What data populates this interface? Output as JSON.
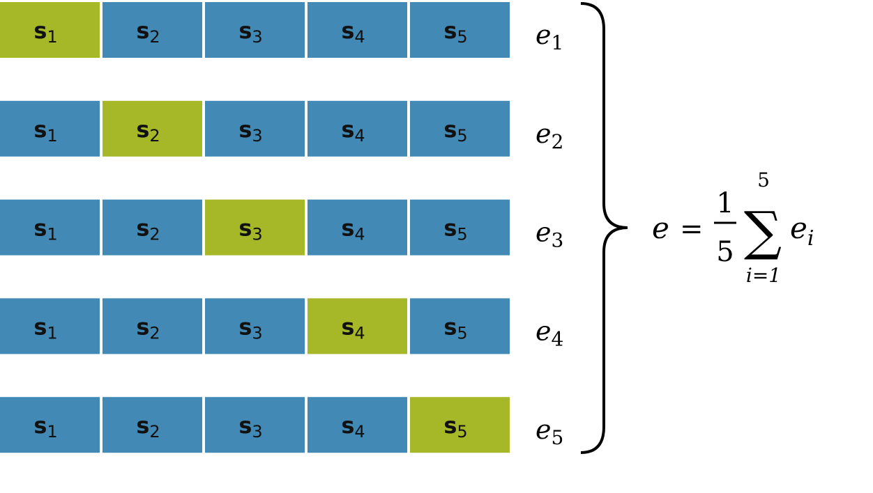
{
  "rows": [
    {
      "cells": [
        {
          "letter": "s",
          "sub": "1",
          "color": "#a6b727"
        },
        {
          "letter": "s",
          "sub": "2",
          "color": "#428ab5"
        },
        {
          "letter": "s",
          "sub": "3",
          "color": "#428ab5"
        },
        {
          "letter": "s",
          "sub": "4",
          "color": "#428ab5"
        },
        {
          "letter": "s",
          "sub": "5",
          "color": "#428ab5"
        }
      ],
      "error": {
        "letter": "e",
        "sub": "1"
      }
    },
    {
      "cells": [
        {
          "letter": "s",
          "sub": "1",
          "color": "#428ab5"
        },
        {
          "letter": "s",
          "sub": "2",
          "color": "#a6b727"
        },
        {
          "letter": "s",
          "sub": "3",
          "color": "#428ab5"
        },
        {
          "letter": "s",
          "sub": "4",
          "color": "#428ab5"
        },
        {
          "letter": "s",
          "sub": "5",
          "color": "#428ab5"
        }
      ],
      "error": {
        "letter": "e",
        "sub": "2"
      }
    },
    {
      "cells": [
        {
          "letter": "s",
          "sub": "1",
          "color": "#428ab5"
        },
        {
          "letter": "s",
          "sub": "2",
          "color": "#428ab5"
        },
        {
          "letter": "s",
          "sub": "3",
          "color": "#a6b727"
        },
        {
          "letter": "s",
          "sub": "4",
          "color": "#428ab5"
        },
        {
          "letter": "s",
          "sub": "5",
          "color": "#428ab5"
        }
      ],
      "error": {
        "letter": "e",
        "sub": "3"
      }
    },
    {
      "cells": [
        {
          "letter": "s",
          "sub": "1",
          "color": "#428ab5"
        },
        {
          "letter": "s",
          "sub": "2",
          "color": "#428ab5"
        },
        {
          "letter": "s",
          "sub": "3",
          "color": "#428ab5"
        },
        {
          "letter": "s",
          "sub": "4",
          "color": "#a6b727"
        },
        {
          "letter": "s",
          "sub": "5",
          "color": "#428ab5"
        }
      ],
      "error": {
        "letter": "e",
        "sub": "4"
      }
    },
    {
      "cells": [
        {
          "letter": "s",
          "sub": "1",
          "color": "#428ab5"
        },
        {
          "letter": "s",
          "sub": "2",
          "color": "#428ab5"
        },
        {
          "letter": "s",
          "sub": "3",
          "color": "#428ab5"
        },
        {
          "letter": "s",
          "sub": "4",
          "color": "#428ab5"
        },
        {
          "letter": "s",
          "sub": "5",
          "color": "#a6b727"
        }
      ],
      "error": {
        "letter": "e",
        "sub": "5"
      }
    }
  ],
  "formula": {
    "lhs": "e",
    "eq": "=",
    "numerator": "1",
    "denominator": "5",
    "sum": "∑",
    "upper": "5",
    "lower": "i=1",
    "term": "e",
    "term_sub": "i"
  }
}
